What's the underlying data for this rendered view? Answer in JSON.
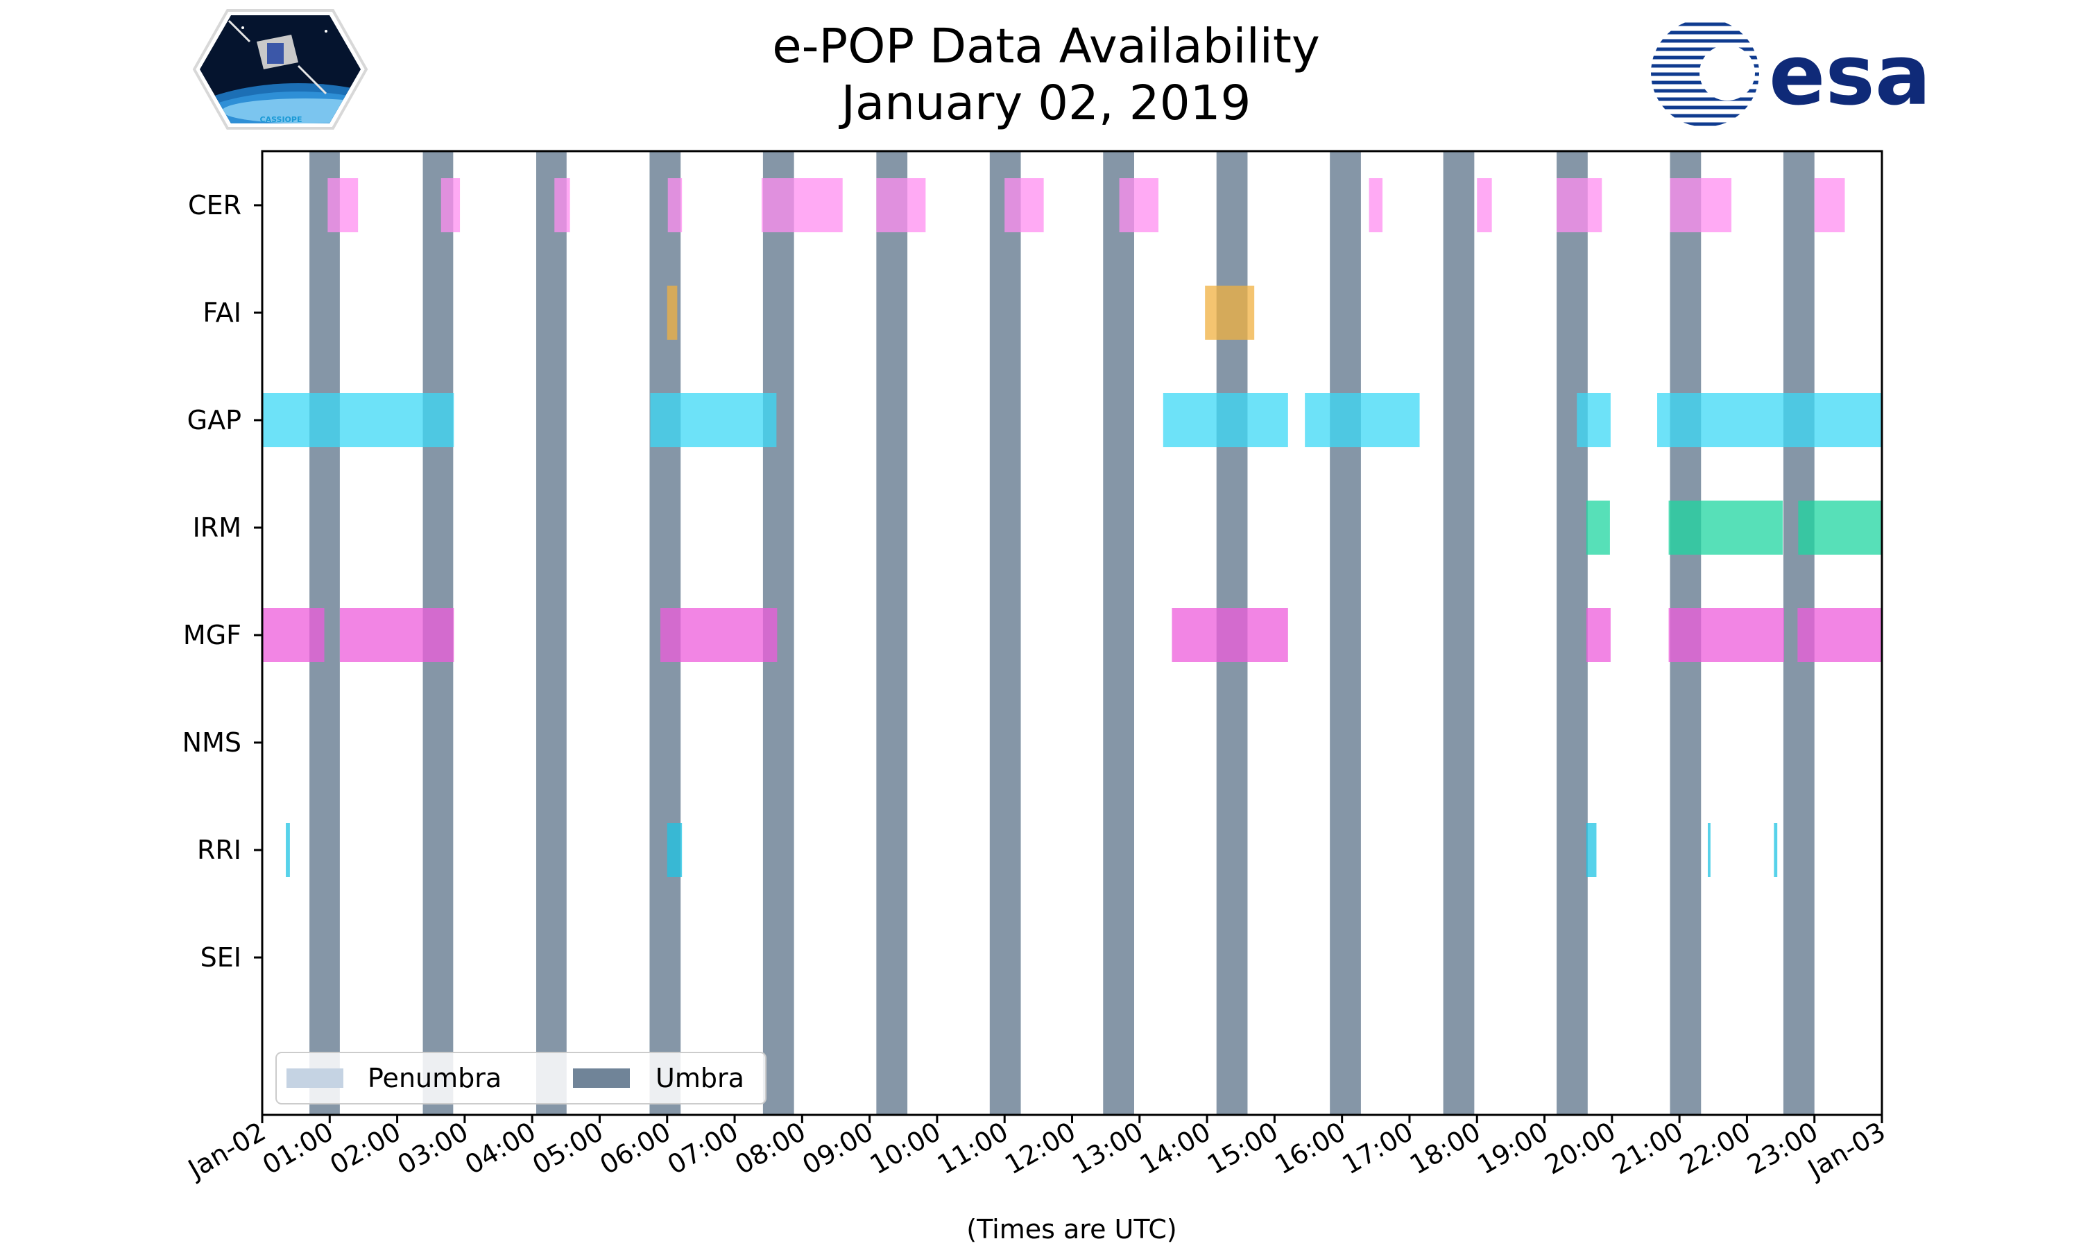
{
  "chart_data": {
    "type": "timeline",
    "title_line1": "e-POP Data Availability",
    "title_line2": "January 02, 2019",
    "xlabel": "(Times are UTC)",
    "x_unit": "hours",
    "xlim": [
      0,
      24
    ],
    "x_ticks": [
      {
        "hour": 0,
        "label": "Jan-02"
      },
      {
        "hour": 1,
        "label": "01:00"
      },
      {
        "hour": 2,
        "label": "02:00"
      },
      {
        "hour": 3,
        "label": "03:00"
      },
      {
        "hour": 4,
        "label": "04:00"
      },
      {
        "hour": 5,
        "label": "05:00"
      },
      {
        "hour": 6,
        "label": "06:00"
      },
      {
        "hour": 7,
        "label": "07:00"
      },
      {
        "hour": 8,
        "label": "08:00"
      },
      {
        "hour": 9,
        "label": "09:00"
      },
      {
        "hour": 10,
        "label": "10:00"
      },
      {
        "hour": 11,
        "label": "11:00"
      },
      {
        "hour": 12,
        "label": "12:00"
      },
      {
        "hour": 13,
        "label": "13:00"
      },
      {
        "hour": 14,
        "label": "14:00"
      },
      {
        "hour": 15,
        "label": "15:00"
      },
      {
        "hour": 16,
        "label": "16:00"
      },
      {
        "hour": 17,
        "label": "17:00"
      },
      {
        "hour": 18,
        "label": "18:00"
      },
      {
        "hour": 19,
        "label": "19:00"
      },
      {
        "hour": 20,
        "label": "20:00"
      },
      {
        "hour": 21,
        "label": "21:00"
      },
      {
        "hour": 22,
        "label": "22:00"
      },
      {
        "hour": 23,
        "label": "23:00"
      },
      {
        "hour": 24,
        "label": "Jan-03"
      }
    ],
    "instruments": [
      "CER",
      "FAI",
      "GAP",
      "IRM",
      "MGF",
      "NMS",
      "RRI",
      "SEI"
    ],
    "colors": {
      "CER": "#ff8ef0",
      "FAI": "#f0b040",
      "GAP": "#3cd8f6",
      "IRM": "#1fd6a0",
      "MGF": "#ee5cdb",
      "RRI": "#1fc3e3",
      "umbra": "#708498",
      "penumbra": "#c5d3e3"
    },
    "umbra": [
      [
        0.7,
        1.15
      ],
      [
        2.38,
        2.83
      ],
      [
        4.06,
        4.51
      ],
      [
        5.74,
        6.2
      ],
      [
        7.42,
        7.88
      ],
      [
        9.1,
        9.56
      ],
      [
        10.78,
        11.24
      ],
      [
        12.46,
        12.92
      ],
      [
        14.14,
        14.6
      ],
      [
        15.82,
        16.28
      ],
      [
        17.5,
        17.96
      ],
      [
        19.18,
        19.64
      ],
      [
        20.86,
        21.32
      ],
      [
        22.54,
        23.0
      ]
    ],
    "series": [
      {
        "name": "CER",
        "intervals": [
          [
            0.97,
            1.42
          ],
          [
            2.65,
            2.93
          ],
          [
            4.33,
            4.56
          ],
          [
            6.01,
            6.22
          ],
          [
            7.4,
            8.6
          ],
          [
            9.1,
            9.83
          ],
          [
            11.0,
            11.58
          ],
          [
            12.7,
            13.28
          ],
          [
            16.4,
            16.6
          ],
          [
            18.0,
            18.22
          ],
          [
            19.18,
            19.85
          ],
          [
            20.86,
            21.77
          ],
          [
            23.0,
            23.45
          ]
        ]
      },
      {
        "name": "FAI",
        "intervals": [
          [
            6.0,
            6.15
          ],
          [
            13.97,
            14.7
          ]
        ]
      },
      {
        "name": "GAP",
        "intervals": [
          [
            0.0,
            2.84
          ],
          [
            5.75,
            7.62
          ],
          [
            13.35,
            15.2
          ],
          [
            15.45,
            17.15
          ],
          [
            19.48,
            19.98
          ],
          [
            20.67,
            24.0
          ]
        ]
      },
      {
        "name": "IRM",
        "intervals": [
          [
            19.62,
            19.97
          ],
          [
            20.84,
            22.53
          ],
          [
            22.76,
            24.0
          ]
        ]
      },
      {
        "name": "MGF",
        "intervals": [
          [
            0.0,
            0.92
          ],
          [
            1.15,
            2.84
          ],
          [
            5.9,
            7.63
          ],
          [
            13.48,
            15.2
          ],
          [
            19.62,
            19.98
          ],
          [
            20.84,
            22.55
          ],
          [
            22.75,
            24.0
          ]
        ]
      },
      {
        "name": "NMS",
        "intervals": []
      },
      {
        "name": "RRI",
        "intervals": [
          [
            0.35,
            0.41
          ],
          [
            6.0,
            6.22
          ],
          [
            19.62,
            19.77
          ],
          [
            21.42,
            21.46
          ],
          [
            22.4,
            22.45
          ]
        ]
      },
      {
        "name": "SEI",
        "intervals": []
      }
    ],
    "legend": {
      "position": "lower-left",
      "entries": [
        {
          "label": "Penumbra",
          "color_key": "penumbra"
        },
        {
          "label": "Umbra",
          "color_key": "umbra"
        }
      ]
    }
  },
  "logos": {
    "left_label": "CASSIOPE",
    "right_label": "esa"
  }
}
